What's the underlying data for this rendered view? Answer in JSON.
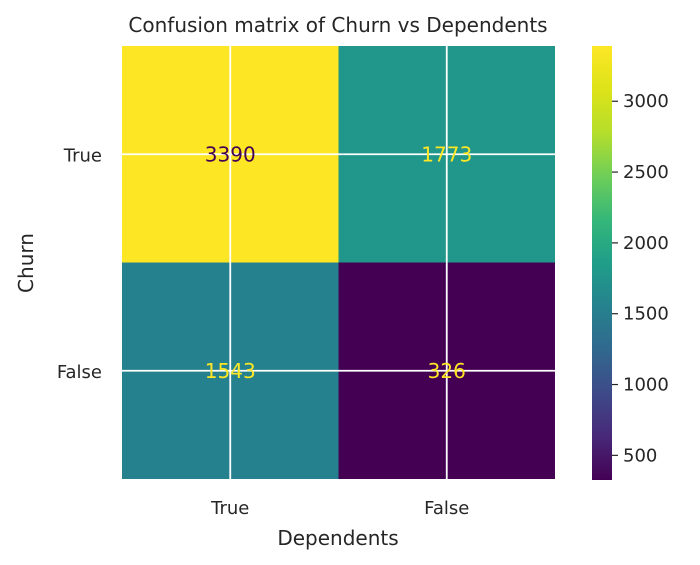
{
  "chart_data": {
    "type": "heatmap",
    "title": "Confusion matrix of Churn vs Dependents",
    "xlabel": "Dependents",
    "ylabel": "Churn",
    "x_categories": [
      "True",
      "False"
    ],
    "y_categories": [
      "True",
      "False"
    ],
    "values": [
      [
        3390,
        1773
      ],
      [
        1543,
        326
      ]
    ],
    "colormap": "viridis",
    "colorbar": {
      "min": 326,
      "max": 3390,
      "ticks": [
        500,
        1000,
        1500,
        2000,
        2500,
        3000
      ],
      "tick_labels": [
        "500",
        "1000",
        "1500",
        "2000",
        "2500",
        "3000"
      ]
    },
    "grid": true,
    "annotation_colors": {
      "dark": "#440154",
      "light": "#fde725"
    }
  }
}
